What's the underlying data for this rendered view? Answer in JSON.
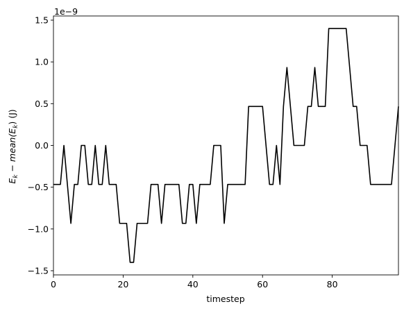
{
  "chart_data": {
    "type": "line",
    "title": "",
    "xlabel": "timestep",
    "ylabel_parts": {
      "main": "E",
      "sub1": "k",
      "minus": " − ",
      "mean": "mean(E",
      "sub2": "k",
      "close": ")",
      "unit": " (J)"
    },
    "y_offset_text": "1e−9",
    "xlim": [
      0,
      99
    ],
    "ylim": [
      -1.55,
      1.55
    ],
    "x_ticks": [
      0,
      20,
      40,
      60,
      80
    ],
    "x_tick_labels": [
      "0",
      "20",
      "40",
      "60",
      "80"
    ],
    "y_ticks": [
      -1.5,
      -1.0,
      -0.5,
      0.0,
      0.5,
      1.0,
      1.5
    ],
    "y_tick_labels": [
      "−1.5",
      "−1.0",
      "−0.5",
      "0.0",
      "0.5",
      "1.0",
      "1.5"
    ],
    "grid": false,
    "series": [
      {
        "color": "#000000",
        "x": [
          0,
          1,
          2,
          3,
          4,
          5,
          6,
          7,
          8,
          9,
          10,
          11,
          12,
          13,
          14,
          15,
          16,
          17,
          18,
          19,
          20,
          21,
          22,
          23,
          24,
          25,
          26,
          27,
          28,
          29,
          30,
          31,
          32,
          33,
          34,
          35,
          36,
          37,
          38,
          39,
          40,
          41,
          42,
          43,
          44,
          45,
          46,
          47,
          48,
          49,
          50,
          51,
          52,
          53,
          54,
          55,
          56,
          57,
          58,
          59,
          60,
          61,
          62,
          63,
          64,
          65,
          66,
          67,
          68,
          69,
          70,
          71,
          72,
          73,
          74,
          75,
          76,
          77,
          78,
          79,
          80,
          81,
          82,
          83,
          84,
          85,
          86,
          87,
          88,
          89,
          90,
          91,
          92,
          93,
          94,
          95,
          96,
          97,
          98,
          99
        ],
        "y": [
          -0.467,
          -0.467,
          -0.467,
          0.0,
          -0.467,
          -0.933,
          -0.467,
          -0.467,
          0.0,
          0.0,
          -0.467,
          -0.467,
          0.0,
          -0.467,
          -0.467,
          0.0,
          -0.467,
          -0.467,
          -0.467,
          -0.933,
          -0.933,
          -0.933,
          -1.4,
          -1.4,
          -0.933,
          -0.933,
          -0.933,
          -0.933,
          -0.467,
          -0.467,
          -0.467,
          -0.933,
          -0.467,
          -0.467,
          -0.467,
          -0.467,
          -0.467,
          -0.933,
          -0.933,
          -0.467,
          -0.467,
          -0.933,
          -0.467,
          -0.467,
          -0.467,
          -0.467,
          0.0,
          0.0,
          0.0,
          -0.933,
          -0.467,
          -0.467,
          -0.467,
          -0.467,
          -0.467,
          -0.467,
          0.467,
          0.467,
          0.467,
          0.467,
          0.467,
          0.0,
          -0.467,
          -0.467,
          0.0,
          -0.467,
          0.467,
          0.933,
          0.467,
          0.0,
          0.0,
          0.0,
          0.0,
          0.467,
          0.467,
          0.933,
          0.467,
          0.467,
          0.467,
          1.4,
          1.4,
          1.4,
          1.4,
          1.4,
          1.4,
          0.933,
          0.467,
          0.467,
          0.0,
          0.0,
          0.0,
          -0.467,
          -0.467,
          -0.467,
          -0.467,
          -0.467,
          -0.467,
          -0.467,
          0.0,
          0.467
        ]
      }
    ]
  }
}
